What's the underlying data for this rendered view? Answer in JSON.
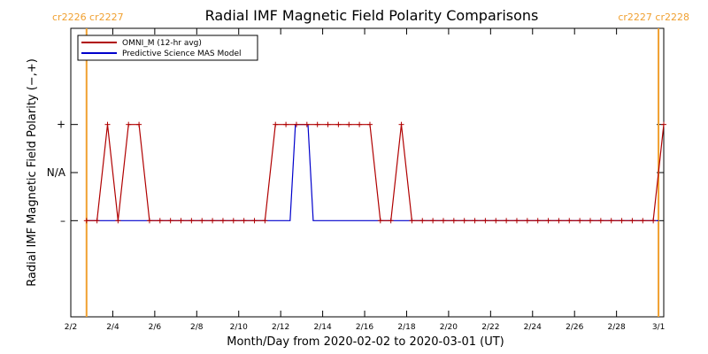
{
  "chart_data": {
    "type": "line",
    "title": "Radial IMF Magnetic Field Polarity Comparisons",
    "xlabel": "Month/Day from 2020-02-02 to 2020-03-01 (UT)",
    "ylabel": "Radial IMF Magnetic Field Polarity (−,+)",
    "xlim": [
      0,
      28.25
    ],
    "ylim": [
      -3,
      3
    ],
    "x_tick_values": [
      0,
      2,
      4,
      6,
      8,
      10,
      12,
      14,
      16,
      18,
      20,
      22,
      24,
      26,
      28
    ],
    "x_tick_labels": [
      "2/2",
      "2/4",
      "2/6",
      "2/8",
      "2/10",
      "2/12",
      "2/14",
      "2/16",
      "2/18",
      "2/20",
      "2/22",
      "2/24",
      "2/26",
      "2/28",
      "3/1"
    ],
    "y_ticks": [
      {
        "value": 1,
        "label": "+"
      },
      {
        "value": 0,
        "label": "N/A"
      },
      {
        "value": -1,
        "label": "–"
      }
    ],
    "grid": false,
    "legend_position": "top-left",
    "carrington_markers": [
      {
        "x": 0.75,
        "label": "cr2226 cr2227",
        "side": "left"
      },
      {
        "x": 28.0,
        "label": "cr2227 cr2228",
        "side": "right"
      }
    ],
    "colors": {
      "omni": "#b00000",
      "model": "#0000cc",
      "carrington": "#f0a030",
      "crossing_labels": "#f0a030"
    },
    "series": [
      {
        "name": "OMNI_M (12-hr avg)",
        "color": "#b00000",
        "markers": true,
        "x": [
          0.75,
          1.25,
          1.75,
          2.25,
          2.75,
          3.25,
          3.75,
          4.25,
          4.75,
          5.25,
          5.75,
          6.25,
          6.75,
          7.25,
          7.75,
          8.25,
          8.75,
          9.25,
          9.75,
          10.25,
          10.75,
          11.25,
          11.75,
          12.25,
          12.75,
          13.25,
          13.75,
          14.25,
          14.75,
          15.25,
          15.75,
          16.25,
          16.75,
          17.25,
          17.75,
          18.25,
          18.75,
          19.25,
          19.75,
          20.25,
          20.75,
          21.25,
          21.75,
          22.25,
          22.75,
          23.25,
          23.75,
          24.25,
          24.75,
          25.25,
          25.75,
          26.25,
          26.75,
          27.25,
          27.75,
          28.25
        ],
        "values": [
          -1,
          -1,
          1,
          -1,
          1,
          1,
          -1,
          -1,
          -1,
          -1,
          -1,
          -1,
          -1,
          -1,
          -1,
          -1,
          -1,
          -1,
          1,
          1,
          1,
          1,
          1,
          1,
          1,
          1,
          1,
          1,
          -1,
          -1,
          1,
          -1,
          -1,
          -1,
          -1,
          -1,
          -1,
          -1,
          -1,
          -1,
          -1,
          -1,
          -1,
          -1,
          -1,
          -1,
          -1,
          -1,
          -1,
          -1,
          -1,
          -1,
          -1,
          -1,
          -1,
          1
        ]
      },
      {
        "name": "Predictive Science MAS Model",
        "color": "#0000cc",
        "markers": false,
        "x": [
          0.75,
          10.45,
          10.7,
          11.3,
          11.55,
          28.0
        ],
        "values": [
          -1,
          -1,
          1,
          1,
          -1,
          -1
        ]
      }
    ]
  }
}
